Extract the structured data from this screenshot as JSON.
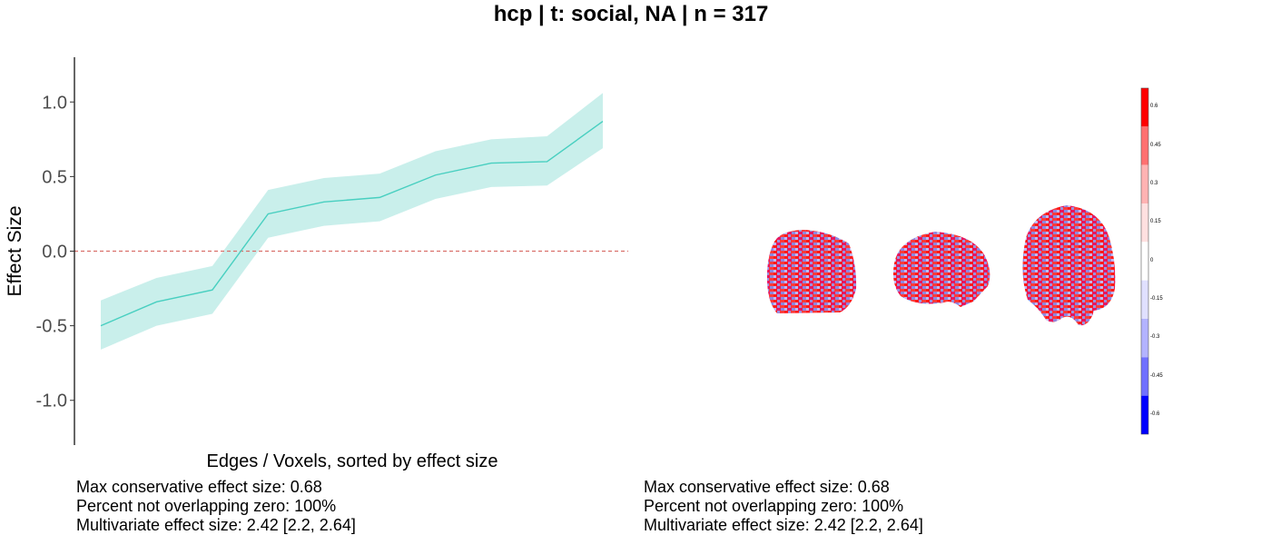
{
  "title": "hcp | t: social, NA | n = 317",
  "chart_data": {
    "type": "line",
    "title": "hcp | t: social, NA | n = 317",
    "xlabel": "Edges / Voxels, sorted by effect size",
    "ylabel": "Effect Size",
    "ylim": [
      -1.3,
      1.3
    ],
    "yticks": [
      1.0,
      0.5,
      0.0,
      -0.5,
      -1.0
    ],
    "ytick_labels": [
      "1.0",
      "0.5",
      "0.0",
      "-0.5",
      "-1.0"
    ],
    "x": [
      1,
      2,
      3,
      4,
      5,
      6,
      7,
      8,
      9,
      10
    ],
    "series": [
      {
        "values": [
          -0.5,
          -0.34,
          -0.26,
          0.25,
          0.33,
          0.36,
          0.51,
          0.59,
          0.6,
          0.87
        ],
        "lower": [
          -0.66,
          -0.5,
          -0.42,
          0.09,
          0.17,
          0.2,
          0.35,
          0.43,
          0.44,
          0.69
        ],
        "upper": [
          -0.33,
          -0.18,
          -0.1,
          0.41,
          0.49,
          0.52,
          0.67,
          0.75,
          0.77,
          1.06
        ],
        "color": "#48cfc0",
        "band_color": "#c9efeb"
      }
    ],
    "reference_line": {
      "y": 0,
      "color": "#d9706b",
      "style": "dashed"
    },
    "grid": false
  },
  "stats_left": [
    "Max conservative effect size: 0.68",
    "Percent not overlapping zero: 100%",
    "Multivariate effect size: 2.42 [2.2, 2.64]"
  ],
  "stats_right": [
    "Max conservative effect size: 0.68",
    "Percent not overlapping zero: 100%",
    "Multivariate effect size: 2.42 [2.2, 2.64]"
  ],
  "colorbar": {
    "labels": [
      "0.6",
      "0.45",
      "0.3",
      "0.15",
      "0",
      "-0.15",
      "-0.3",
      "-0.45",
      "-0.6"
    ],
    "colors": [
      "#ff0000",
      "#ff7070",
      "#ffb3b3",
      "#ffe0e0",
      "#ffffff",
      "#e0e0ff",
      "#b3b3ff",
      "#7070ff",
      "#0000ff"
    ]
  }
}
